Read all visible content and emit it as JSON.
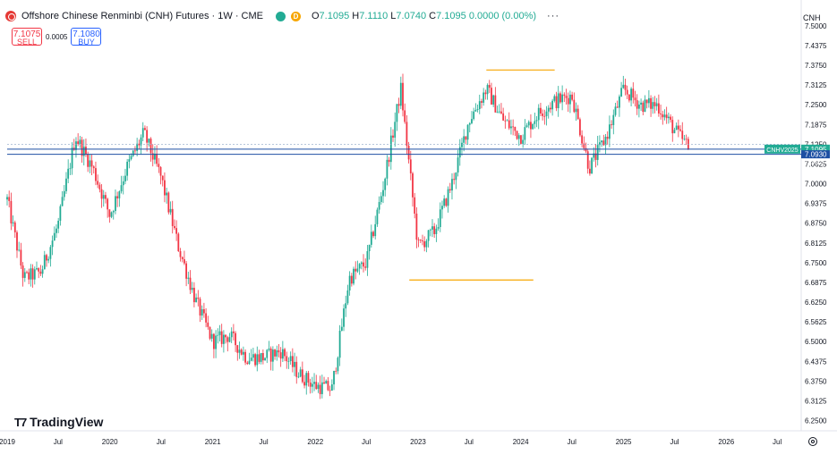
{
  "header": {
    "title": "Offshore Chinese Renminbi (CNH) Futures · 1W · CME",
    "badge_letter": "D",
    "ohlc": [
      {
        "k": "O",
        "v": "7.1095"
      },
      {
        "k": "H",
        "v": "7.1110"
      },
      {
        "k": "L",
        "v": "7.0740"
      },
      {
        "k": "C",
        "v": "7.1095"
      }
    ],
    "change": "0.0000 (0.00%)",
    "more_icon": "more-horizontal-icon"
  },
  "trade": {
    "sell_price": "7.1075",
    "sell_label": "SELL",
    "spread": "0.0005",
    "buy_price": "7.1080",
    "buy_label": "BUY"
  },
  "branding": {
    "name": "TradingView"
  },
  "currency_label": "CNH",
  "price_labels": {
    "symbol": "CNHV2025",
    "last": "7.1095",
    "line2": "7.0930",
    "line3": "7.0825"
  },
  "colors": {
    "up": "#22ab94",
    "down": "#f23645",
    "hline": "#1e4fa3",
    "level": "#f7a600",
    "label_bg": "#22ab94"
  },
  "chart_data": {
    "type": "candlestick",
    "yaxis": {
      "ticks": [
        "7.5000",
        "7.4375",
        "7.3750",
        "7.3125",
        "7.2500",
        "7.1875",
        "7.1250",
        "7.0625",
        "7.0000",
        "6.9375",
        "6.8750",
        "6.8125",
        "6.7500",
        "6.6875",
        "6.6250",
        "6.5625",
        "6.5000",
        "6.4375",
        "6.3750",
        "6.3125",
        "6.2500"
      ],
      "range": [
        6.2175,
        7.525
      ]
    },
    "xaxis": {
      "ticks": [
        "2019",
        "Jul",
        "2020",
        "Jul",
        "2021",
        "Jul",
        "2022",
        "Jul",
        "2023",
        "Jul",
        "2024",
        "Jul",
        "2025",
        "Jul",
        "2026",
        "Jul"
      ],
      "range": [
        "2019-01-01",
        "2026-09-15"
      ]
    },
    "anchors": [
      [
        "2019-01-01",
        6.95
      ],
      [
        "2019-03-01",
        6.7
      ],
      [
        "2019-05-01",
        6.72
      ],
      [
        "2019-07-01",
        6.87
      ],
      [
        "2019-09-01",
        7.15
      ],
      [
        "2019-11-01",
        7.05
      ],
      [
        "2020-01-01",
        6.9
      ],
      [
        "2020-03-01",
        7.05
      ],
      [
        "2020-05-01",
        7.16
      ],
      [
        "2020-07-01",
        7.02
      ],
      [
        "2020-09-01",
        6.8
      ],
      [
        "2020-11-01",
        6.63
      ],
      [
        "2021-01-01",
        6.5
      ],
      [
        "2021-03-01",
        6.52
      ],
      [
        "2021-05-01",
        6.45
      ],
      [
        "2021-07-01",
        6.45
      ],
      [
        "2021-09-01",
        6.47
      ],
      [
        "2021-11-01",
        6.4
      ],
      [
        "2022-01-01",
        6.36
      ],
      [
        "2022-03-01",
        6.35
      ],
      [
        "2022-05-01",
        6.7
      ],
      [
        "2022-07-01",
        6.75
      ],
      [
        "2022-09-01",
        7.0
      ],
      [
        "2022-11-01",
        7.3
      ],
      [
        "2023-01-01",
        6.8
      ],
      [
        "2023-03-01",
        6.85
      ],
      [
        "2023-05-01",
        7.0
      ],
      [
        "2023-07-01",
        7.2
      ],
      [
        "2023-09-01",
        7.3
      ],
      [
        "2023-11-01",
        7.2
      ],
      [
        "2024-01-01",
        7.15
      ],
      [
        "2024-03-01",
        7.22
      ],
      [
        "2024-05-01",
        7.26
      ],
      [
        "2024-07-01",
        7.28
      ],
      [
        "2024-09-01",
        7.05
      ],
      [
        "2024-11-01",
        7.15
      ],
      [
        "2025-01-01",
        7.3
      ],
      [
        "2025-03-01",
        7.25
      ],
      [
        "2025-05-01",
        7.25
      ],
      [
        "2025-07-01",
        7.17
      ],
      [
        "2025-08-25",
        7.1095
      ]
    ],
    "horizontal_lines": [
      7.093,
      7.1095,
      7.125
    ],
    "level_lines": [
      {
        "price": 7.36,
        "from": "2023-09-01",
        "to": "2024-05-01"
      },
      {
        "price": 6.695,
        "from": "2022-12-01",
        "to": "2024-02-15"
      }
    ],
    "last_price": 7.1095
  }
}
